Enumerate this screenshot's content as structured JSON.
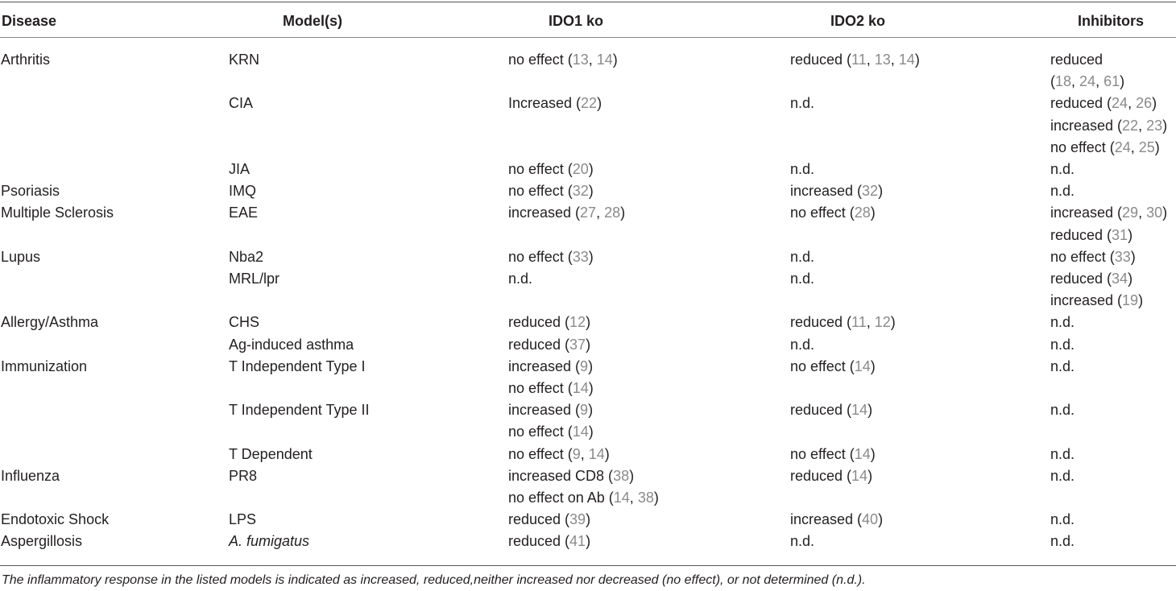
{
  "headers": {
    "disease": "Disease",
    "model": "Model(s)",
    "ido1": "IDO1 ko",
    "ido2": "IDO2 ko",
    "inhibitors": "Inhibitors"
  },
  "rows": [
    {
      "disease": "Arthritis",
      "model": "KRN",
      "model_italic": false,
      "ido1": [
        [
          {
            "t": "no effect ("
          },
          {
            "t": "13",
            "r": 1
          },
          {
            "t": ", "
          },
          {
            "t": "14",
            "r": 1
          },
          {
            "t": ")"
          }
        ]
      ],
      "ido2": [
        [
          {
            "t": "reduced ("
          },
          {
            "t": "11",
            "r": 1
          },
          {
            "t": ", "
          },
          {
            "t": "13",
            "r": 1
          },
          {
            "t": ", "
          },
          {
            "t": "14",
            "r": 1
          },
          {
            "t": ")"
          }
        ]
      ],
      "inh": [
        [
          {
            "t": "reduced"
          }
        ],
        [
          {
            "t": " ("
          },
          {
            "t": "18",
            "r": 1
          },
          {
            "t": ", "
          },
          {
            "t": "24",
            "r": 1
          },
          {
            "t": ", "
          },
          {
            "t": "61",
            "r": 1
          },
          {
            "t": ")"
          }
        ]
      ]
    },
    {
      "disease": "",
      "model": "CIA",
      "model_italic": false,
      "ido1": [
        [
          {
            "t": "Increased ("
          },
          {
            "t": "22",
            "r": 1
          },
          {
            "t": ")"
          }
        ]
      ],
      "ido2": [
        [
          {
            "t": "n.d."
          }
        ]
      ],
      "inh": [
        [
          {
            "t": "reduced ("
          },
          {
            "t": "24",
            "r": 1
          },
          {
            "t": ", "
          },
          {
            "t": "26",
            "r": 1
          },
          {
            "t": ")"
          }
        ],
        [
          {
            "t": "increased ("
          },
          {
            "t": "22",
            "r": 1
          },
          {
            "t": ", "
          },
          {
            "t": "23",
            "r": 1
          },
          {
            "t": ")"
          }
        ],
        [
          {
            "t": "no effect ("
          },
          {
            "t": "24",
            "r": 1
          },
          {
            "t": ", "
          },
          {
            "t": "25",
            "r": 1
          },
          {
            "t": ")"
          }
        ]
      ]
    },
    {
      "disease": "",
      "model": "JIA",
      "model_italic": false,
      "ido1": [
        [
          {
            "t": "no effect ("
          },
          {
            "t": "20",
            "r": 1
          },
          {
            "t": ")"
          }
        ]
      ],
      "ido2": [
        [
          {
            "t": "n.d."
          }
        ]
      ],
      "inh": [
        [
          {
            "t": "n.d."
          }
        ]
      ]
    },
    {
      "disease": "Psoriasis",
      "model": "IMQ",
      "model_italic": false,
      "ido1": [
        [
          {
            "t": "no effect ("
          },
          {
            "t": "32",
            "r": 1
          },
          {
            "t": ")"
          }
        ]
      ],
      "ido2": [
        [
          {
            "t": "increased ("
          },
          {
            "t": "32",
            "r": 1
          },
          {
            "t": ")"
          }
        ]
      ],
      "inh": [
        [
          {
            "t": "n.d."
          }
        ]
      ]
    },
    {
      "disease": "Multiple Sclerosis",
      "model": "EAE",
      "model_italic": false,
      "ido1": [
        [
          {
            "t": "increased ("
          },
          {
            "t": "27",
            "r": 1
          },
          {
            "t": ", "
          },
          {
            "t": "28",
            "r": 1
          },
          {
            "t": ")"
          }
        ]
      ],
      "ido2": [
        [
          {
            "t": "no effect ("
          },
          {
            "t": "28",
            "r": 1
          },
          {
            "t": ")"
          }
        ]
      ],
      "inh": [
        [
          {
            "t": "increased ("
          },
          {
            "t": "29",
            "r": 1
          },
          {
            "t": ", "
          },
          {
            "t": "30",
            "r": 1
          },
          {
            "t": ")"
          }
        ],
        [
          {
            "t": "reduced ("
          },
          {
            "t": "31",
            "r": 1
          },
          {
            "t": ")"
          }
        ]
      ]
    },
    {
      "disease": "Lupus",
      "model": "Nba2",
      "model_italic": false,
      "ido1": [
        [
          {
            "t": "no effect ("
          },
          {
            "t": "33",
            "r": 1
          },
          {
            "t": ")"
          }
        ]
      ],
      "ido2": [
        [
          {
            "t": "n.d."
          }
        ]
      ],
      "inh": [
        [
          {
            "t": "no effect ("
          },
          {
            "t": "33",
            "r": 1
          },
          {
            "t": ")"
          }
        ]
      ]
    },
    {
      "disease": "",
      "model": "MRL/lpr",
      "model_italic": false,
      "ido1": [
        [
          {
            "t": "n.d."
          }
        ]
      ],
      "ido2": [
        [
          {
            "t": "n.d."
          }
        ]
      ],
      "inh": [
        [
          {
            "t": "reduced ("
          },
          {
            "t": "34",
            "r": 1
          },
          {
            "t": ")"
          }
        ],
        [
          {
            "t": "increased ("
          },
          {
            "t": "19",
            "r": 1
          },
          {
            "t": ")"
          }
        ]
      ]
    },
    {
      "disease": "Allergy/Asthma",
      "model": "CHS",
      "model_italic": false,
      "ido1": [
        [
          {
            "t": "reduced ("
          },
          {
            "t": "12",
            "r": 1
          },
          {
            "t": ")"
          }
        ]
      ],
      "ido2": [
        [
          {
            "t": "reduced ("
          },
          {
            "t": "11",
            "r": 1
          },
          {
            "t": ", "
          },
          {
            "t": "12",
            "r": 1
          },
          {
            "t": ")"
          }
        ]
      ],
      "inh": [
        [
          {
            "t": "n.d."
          }
        ]
      ]
    },
    {
      "disease": "",
      "model": "Ag-induced asthma",
      "model_italic": false,
      "ido1": [
        [
          {
            "t": "reduced ("
          },
          {
            "t": "37",
            "r": 1
          },
          {
            "t": ")"
          }
        ]
      ],
      "ido2": [
        [
          {
            "t": "n.d."
          }
        ]
      ],
      "inh": [
        [
          {
            "t": "n.d."
          }
        ]
      ]
    },
    {
      "disease": "Immunization",
      "model": "T Independent Type I",
      "model_italic": false,
      "ido1": [
        [
          {
            "t": "increased ("
          },
          {
            "t": "9",
            "r": 1
          },
          {
            "t": ")"
          }
        ],
        [
          {
            "t": "no effect ("
          },
          {
            "t": "14",
            "r": 1
          },
          {
            "t": ")"
          }
        ]
      ],
      "ido2": [
        [
          {
            "t": "no effect ("
          },
          {
            "t": "14",
            "r": 1
          },
          {
            "t": ")"
          }
        ]
      ],
      "inh": [
        [
          {
            "t": "n.d."
          }
        ]
      ]
    },
    {
      "disease": "",
      "model": "T Independent Type II",
      "model_italic": false,
      "ido1": [
        [
          {
            "t": "increased ("
          },
          {
            "t": "9",
            "r": 1
          },
          {
            "t": ")"
          }
        ],
        [
          {
            "t": "no effect ("
          },
          {
            "t": "14",
            "r": 1
          },
          {
            "t": ")"
          }
        ]
      ],
      "ido2": [
        [
          {
            "t": "reduced ("
          },
          {
            "t": "14",
            "r": 1
          },
          {
            "t": ")"
          }
        ]
      ],
      "inh": [
        [
          {
            "t": "n.d."
          }
        ]
      ]
    },
    {
      "disease": "",
      "model": "T Dependent",
      "model_italic": false,
      "ido1": [
        [
          {
            "t": "no effect ("
          },
          {
            "t": "9",
            "r": 1
          },
          {
            "t": ", "
          },
          {
            "t": "14",
            "r": 1
          },
          {
            "t": ")"
          }
        ]
      ],
      "ido2": [
        [
          {
            "t": "no effect ("
          },
          {
            "t": "14",
            "r": 1
          },
          {
            "t": ")"
          }
        ]
      ],
      "inh": [
        [
          {
            "t": "n.d."
          }
        ]
      ]
    },
    {
      "disease": "Influenza",
      "model": "PR8",
      "model_italic": false,
      "ido1": [
        [
          {
            "t": "increased CD8 ("
          },
          {
            "t": "38",
            "r": 1
          },
          {
            "t": ")"
          }
        ],
        [
          {
            "t": "no effect on Ab ("
          },
          {
            "t": "14",
            "r": 1
          },
          {
            "t": ", "
          },
          {
            "t": "38",
            "r": 1
          },
          {
            "t": ")"
          }
        ]
      ],
      "ido2": [
        [
          {
            "t": "reduced ("
          },
          {
            "t": "14",
            "r": 1
          },
          {
            "t": ")"
          }
        ]
      ],
      "inh": [
        [
          {
            "t": "n.d."
          }
        ]
      ]
    },
    {
      "disease": "Endotoxic Shock",
      "model": "LPS",
      "model_italic": false,
      "ido1": [
        [
          {
            "t": "reduced ("
          },
          {
            "t": "39",
            "r": 1
          },
          {
            "t": ")"
          }
        ]
      ],
      "ido2": [
        [
          {
            "t": "increased ("
          },
          {
            "t": "40",
            "r": 1
          },
          {
            "t": ")"
          }
        ]
      ],
      "inh": [
        [
          {
            "t": "n.d."
          }
        ]
      ]
    },
    {
      "disease": "Aspergillosis",
      "model": "A. fumigatus",
      "model_italic": true,
      "ido1": [
        [
          {
            "t": "reduced ("
          },
          {
            "t": "41",
            "r": 1
          },
          {
            "t": ")"
          }
        ]
      ],
      "ido2": [
        [
          {
            "t": "n.d."
          }
        ]
      ],
      "inh": [
        [
          {
            "t": "n.d."
          }
        ]
      ]
    }
  ],
  "footnote": "The inflammatory response in the listed models is indicated as increased, reduced,neither increased nor decreased (no effect), or not determined (n.d.).",
  "colors": {
    "text": "#231f20",
    "reference": "#8a8a8a",
    "rule": "#555555"
  }
}
